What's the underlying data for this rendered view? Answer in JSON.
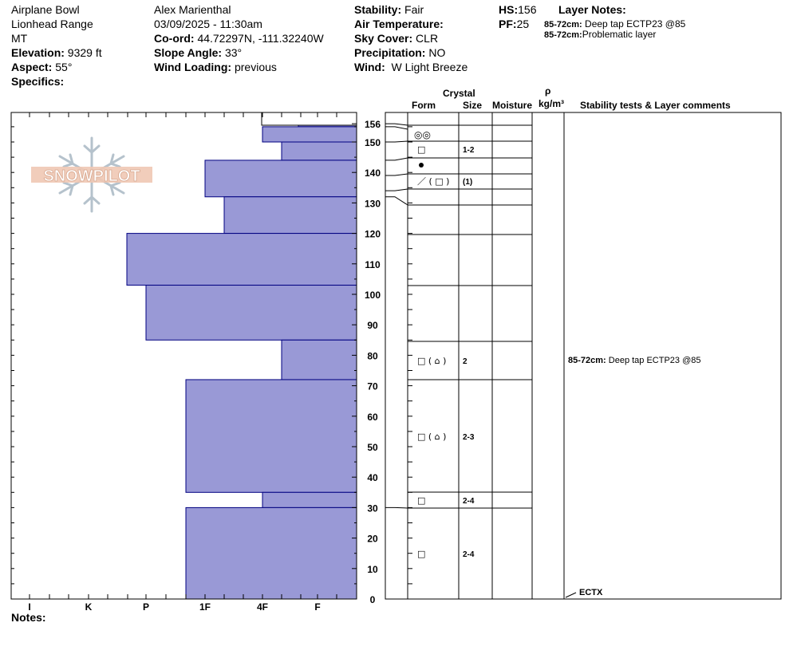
{
  "header": {
    "location": "Airplane Bowl",
    "range": "Lionhead Range",
    "state": "MT",
    "elevation_label": "Elevation:",
    "elevation": "9329 ft",
    "aspect_label": "Aspect:",
    "aspect": "55°",
    "specifics_label": "Specifics:",
    "observer": "Alex Marienthal",
    "datetime": "03/09/2025 - 11:30am",
    "coord_label": "Co-ord:",
    "coord": "44.72297N, -111.32240W",
    "slope_label": "Slope Angle:",
    "slope": "33°",
    "wind_loading_label": "Wind Loading:",
    "wind_loading": "previous",
    "stability_label": "Stability:",
    "stability": "Fair",
    "air_temp_label": "Air Temperature:",
    "air_temp": "",
    "sky_label": "Sky Cover:",
    "sky": "CLR",
    "precip_label": "Precipitation:",
    "precip": "NO",
    "wind_label": "Wind:",
    "wind": "W Light Breeze",
    "hs_label": "HS:",
    "hs": "156",
    "pf_label": "PF:",
    "pf": "25",
    "layer_notes_title": "Layer Notes:",
    "layer_notes": [
      {
        "range": "85-72cm:",
        "text": "Deep tap ECTP23 @85"
      },
      {
        "range": "85-72cm:",
        "text": "Problematic layer"
      }
    ]
  },
  "columns": {
    "crystal": "Crystal",
    "form": "Form",
    "size": "Size",
    "moisture": "Moisture",
    "rho": "ρ",
    "density_unit": "kg/m³",
    "comments": "Stability tests & Layer comments"
  },
  "logo_text": "SNOWPILOT",
  "notes_label": "Notes:",
  "colors": {
    "bar_fill": "#9999d6",
    "bar_stroke": "#000080"
  },
  "chart_data": {
    "type": "bar",
    "orientation": "horizontal",
    "xlabels": [
      "I",
      "K",
      "P",
      "1F",
      "4F",
      "F"
    ],
    "ylim": [
      0,
      156
    ],
    "yticks": [
      0,
      10,
      20,
      30,
      40,
      50,
      60,
      70,
      80,
      90,
      100,
      110,
      120,
      130,
      140,
      150,
      156
    ],
    "hardness_layers": [
      {
        "top": 156,
        "bottom": 155,
        "hardness": "F+"
      },
      {
        "top": 155,
        "bottom": 150,
        "hardness": "4F"
      },
      {
        "top": 150,
        "bottom": 144,
        "hardness": "4F-"
      },
      {
        "top": 144,
        "bottom": 132,
        "hardness": "1F"
      },
      {
        "top": 132,
        "bottom": 120,
        "hardness": "1F-"
      },
      {
        "top": 120,
        "bottom": 103,
        "hardness": "P+"
      },
      {
        "top": 103,
        "bottom": 85,
        "hardness": "P"
      },
      {
        "top": 85,
        "bottom": 72,
        "hardness": "4F-"
      },
      {
        "top": 72,
        "bottom": 35,
        "hardness": "1F+"
      },
      {
        "top": 35,
        "bottom": 30,
        "hardness": "4F"
      },
      {
        "top": 30,
        "bottom": 0,
        "hardness": "1F+"
      }
    ],
    "crystal_layers": [
      {
        "top": 150,
        "bottom": 144,
        "form": "□",
        "size": "1-2"
      },
      {
        "top": 139,
        "bottom": 134,
        "form": "／ ( □ )",
        "size": "(1)"
      },
      {
        "top": 85,
        "bottom": 72,
        "form": "□ ( ⌂ )",
        "size": "2"
      },
      {
        "top": 72,
        "bottom": 35,
        "form": "□ ( ⌂ )",
        "size": "2-3"
      },
      {
        "top": 35,
        "bottom": 30,
        "form": "□",
        "size": "2-4"
      },
      {
        "top": 30,
        "bottom": 0,
        "form": "□",
        "size": "2-4"
      }
    ],
    "layer_comments": [
      {
        "depth": 78.5,
        "range": "85-72cm:",
        "text": "Deep tap ECTP23 @85"
      }
    ],
    "stability_tests": [
      {
        "depth": 0,
        "label": "ECTX"
      }
    ]
  }
}
